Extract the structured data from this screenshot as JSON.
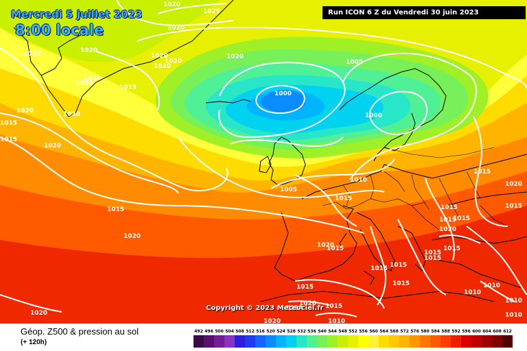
{
  "header": {
    "date": "Mercredi 5 juillet 2023",
    "time": "8:00 locale",
    "run": "Run ICON 6 Z du Vendredi 30 juin 2023"
  },
  "copyright": "Copyright © 2023 Meteociel.fr",
  "footer": {
    "title": "Géop. Z500 & pression au sol",
    "subtitle": "(+ 120h)"
  },
  "legend": {
    "values": [
      "492",
      "496",
      "500",
      "504",
      "508",
      "512",
      "516",
      "520",
      "524",
      "528",
      "532",
      "536",
      "540",
      "544",
      "548",
      "552",
      "556",
      "560",
      "564",
      "568",
      "572",
      "576",
      "580",
      "584",
      "588",
      "592",
      "596",
      "600",
      "604",
      "608",
      "612"
    ],
    "colors": [
      "#3c0a46",
      "#5a0f6e",
      "#731e96",
      "#8c32be",
      "#2d1edc",
      "#1e3cf0",
      "#1464ff",
      "#0a8cff",
      "#00b4ff",
      "#00d2f0",
      "#28e6c8",
      "#50f096",
      "#78f05a",
      "#a0f028",
      "#c8f000",
      "#e6f000",
      "#ffff00",
      "#fff03c",
      "#ffdc00",
      "#ffc800",
      "#ffb400",
      "#ff9600",
      "#ff7800",
      "#ff5a00",
      "#ff3c00",
      "#f01e00",
      "#dc0000",
      "#be0000",
      "#a00000",
      "#820000",
      "#500000"
    ]
  },
  "isobars": [
    {
      "label": "1025"
    },
    {
      "label": "1020"
    },
    {
      "label": "1020"
    },
    {
      "label": "1020"
    },
    {
      "label": "1020"
    },
    {
      "label": "1020"
    },
    {
      "label": "1020"
    },
    {
      "label": "1020"
    },
    {
      "label": "1020"
    },
    {
      "label": "1020"
    },
    {
      "label": "1020"
    },
    {
      "label": "1015"
    },
    {
      "label": "1015"
    },
    {
      "label": "1020"
    },
    {
      "label": "1015"
    },
    {
      "label": "1020"
    },
    {
      "label": "1015"
    },
    {
      "label": "1020"
    },
    {
      "label": "1020"
    },
    {
      "label": "1005"
    },
    {
      "label": "1000"
    },
    {
      "label": "1000"
    },
    {
      "label": "1010"
    },
    {
      "label": "1005"
    },
    {
      "label": "1015"
    },
    {
      "label": "1015"
    },
    {
      "label": "1015"
    },
    {
      "label": "1015"
    },
    {
      "label": "1020"
    },
    {
      "label": "1020"
    },
    {
      "label": "1015"
    },
    {
      "label": "1015"
    },
    {
      "label": "1015"
    },
    {
      "label": "1015"
    },
    {
      "label": "1015"
    },
    {
      "label": "1015"
    },
    {
      "label": "1015"
    },
    {
      "label": "1010"
    },
    {
      "label": "1010"
    },
    {
      "label": "1010"
    },
    {
      "label": "1015"
    },
    {
      "label": "1015"
    },
    {
      "label": "1015"
    },
    {
      "label": "1020"
    },
    {
      "label": "1020"
    },
    {
      "label": "1020"
    },
    {
      "label": "1020"
    },
    {
      "label": "1015"
    },
    {
      "label": "1020"
    },
    {
      "label": "1010"
    },
    {
      "label": "1010"
    },
    {
      "label": "1020"
    }
  ]
}
